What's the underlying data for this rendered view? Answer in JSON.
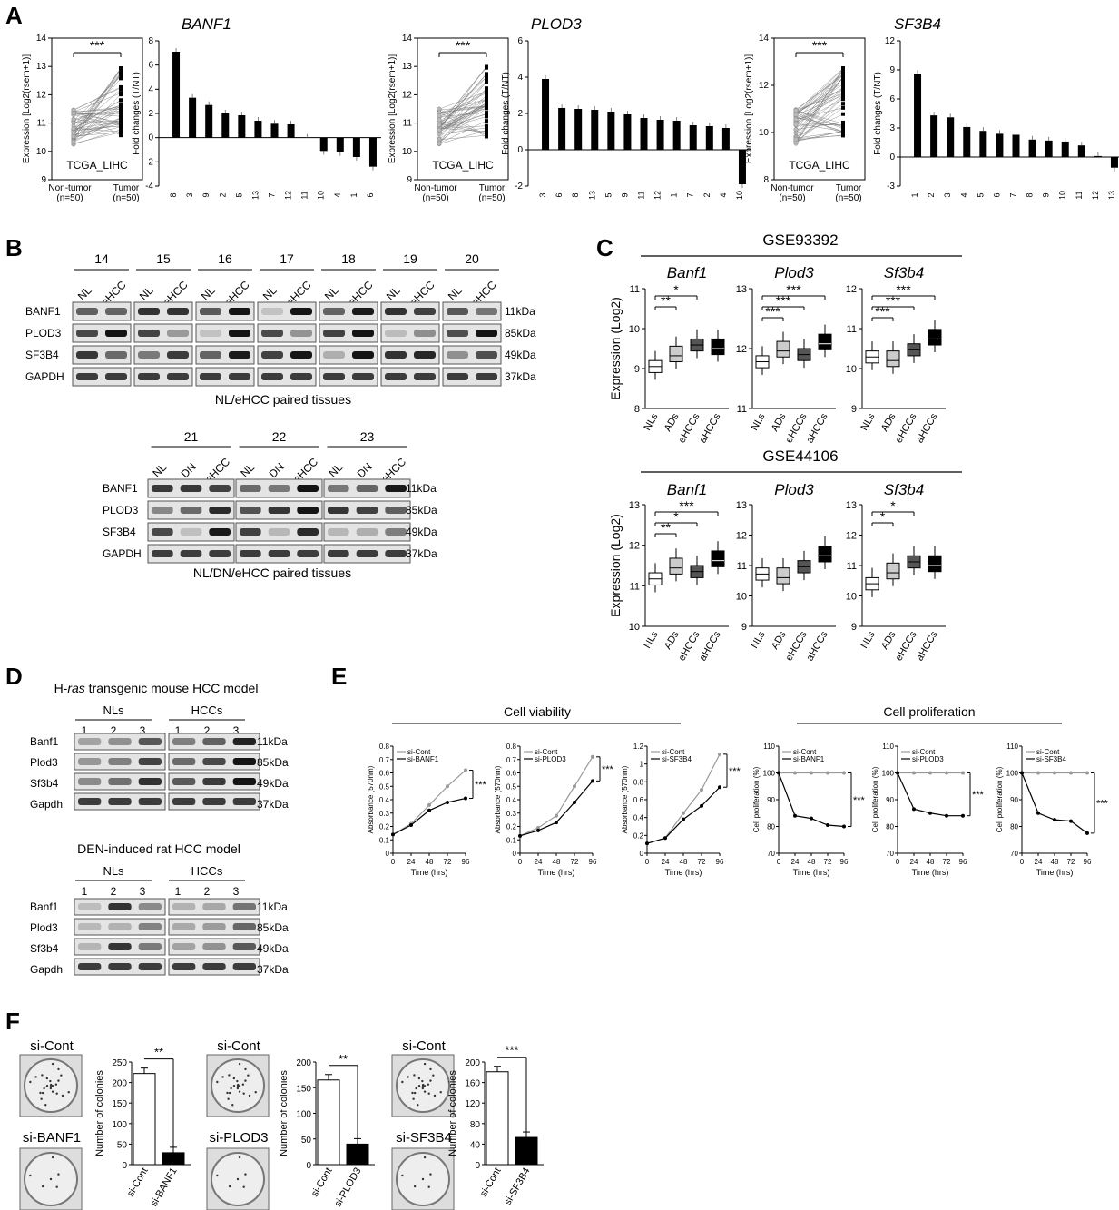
{
  "panels": {
    "A": "A",
    "B": "B",
    "C": "C",
    "D": "D",
    "E": "E",
    "F": "F"
  },
  "panelA": {
    "genes": [
      {
        "name": "BANF1",
        "paired_ylabel": "Expression [Log2(rsem+1)]",
        "paired_yticks": [
          "9",
          "10",
          "11",
          "12",
          "13",
          "14"
        ],
        "paired_ylim": [
          9,
          14
        ],
        "stars": "***",
        "inset": "TCGA_LIHC",
        "xlabels": [
          "Non-tumor\n(n=50)",
          "Tumor\n(n=50)"
        ],
        "fc_ylabel": "Fold changes (T/NT)",
        "fc_ylim": [
          -4,
          8
        ],
        "fc_yticks": [
          "-4",
          "-2",
          "0",
          "2",
          "4",
          "6",
          "8"
        ],
        "fc_categories": [
          "8",
          "3",
          "9",
          "2",
          "5",
          "13",
          "7",
          "12",
          "11",
          "10",
          "4",
          "1",
          "6"
        ],
        "fc_values": [
          7.1,
          3.3,
          2.7,
          2.0,
          1.85,
          1.4,
          1.15,
          1.1,
          0,
          -1.1,
          -1.2,
          -1.6,
          -2.4
        ]
      },
      {
        "name": "PLOD3",
        "paired_ylabel": "Expression [Log2(rsem+1)]",
        "paired_yticks": [
          "9",
          "10",
          "11",
          "12",
          "13",
          "14"
        ],
        "paired_ylim": [
          9,
          14
        ],
        "stars": "***",
        "inset": "TCGA_LIHC",
        "xlabels": [
          "Non-tumor\n(n=50)",
          "Tumor\n(n=50)"
        ],
        "fc_ylabel": "Fold changes (T/NT)",
        "fc_ylim": [
          -2,
          6
        ],
        "fc_yticks": [
          "-2",
          "0",
          "2",
          "4",
          "6"
        ],
        "fc_categories": [
          "3",
          "6",
          "8",
          "13",
          "5",
          "9",
          "11",
          "12",
          "1",
          "7",
          "2",
          "4",
          "10"
        ],
        "fc_values": [
          3.9,
          2.3,
          2.25,
          2.2,
          2.1,
          1.95,
          1.75,
          1.65,
          1.6,
          1.35,
          1.3,
          1.2,
          -1.9
        ]
      },
      {
        "name": "SF3B4",
        "paired_ylabel": "Expression [Log2(rsem+1)]",
        "paired_yticks": [
          "8",
          "10",
          "12",
          "14"
        ],
        "paired_ylim": [
          8,
          14
        ],
        "stars": "***",
        "inset": "TCGA_LIHC",
        "xlabels": [
          "Non-tumor\n(n=50)",
          "Tumor\n(n=50)"
        ],
        "fc_ylabel": "Fold changes (T/NT)",
        "fc_ylim": [
          -3,
          12
        ],
        "fc_yticks": [
          "-3",
          "0",
          "3",
          "6",
          "9",
          "12"
        ],
        "fc_categories": [
          "1",
          "2",
          "3",
          "4",
          "5",
          "6",
          "7",
          "8",
          "9",
          "10",
          "11",
          "12",
          "13"
        ],
        "fc_values": [
          8.6,
          4.3,
          4.1,
          3.1,
          2.7,
          2.4,
          2.3,
          1.8,
          1.7,
          1.6,
          1.2,
          0.1,
          -1.1
        ]
      }
    ]
  },
  "panelB": {
    "top": {
      "samples": [
        "14",
        "15",
        "16",
        "17",
        "18",
        "19",
        "20"
      ],
      "lanes": [
        "NL",
        "eHCC"
      ],
      "proteins": [
        "BANF1",
        "PLOD3",
        "SF3B4",
        "GAPDH"
      ],
      "sizes": [
        "11kDa",
        "85kDa",
        "49kDa",
        "37kDa"
      ],
      "caption": "NL/eHCC paired tissues"
    },
    "bottom": {
      "samples": [
        "21",
        "22",
        "23"
      ],
      "lanes": [
        "NL",
        "DN",
        "eHCC"
      ],
      "proteins": [
        "BANF1",
        "PLOD3",
        "SF3B4",
        "GAPDH"
      ],
      "sizes": [
        "11kDa",
        "85kDa",
        "49kDa",
        "37kDa"
      ],
      "caption": "NL/DN/eHCC paired tissues"
    }
  },
  "panelC": {
    "ylabel": "Expression (Log2)",
    "groups": [
      "NLs",
      "ADs",
      "eHCCs",
      "aHCCs"
    ],
    "datasets": [
      {
        "title": "GSE93392",
        "genes": [
          {
            "name": "Banf1",
            "yticks": [
              "8",
              "9",
              "10",
              "11"
            ],
            "ylim": [
              8,
              11
            ],
            "stars": [
              "**",
              "*"
            ]
          },
          {
            "name": "Plod3",
            "yticks": [
              "11",
              "12",
              "13"
            ],
            "ylim": [
              11,
              13
            ],
            "stars": [
              "***",
              "***",
              "***"
            ]
          },
          {
            "name": "Sf3b4",
            "yticks": [
              "9",
              "10",
              "11",
              "12"
            ],
            "ylim": [
              9,
              12
            ],
            "stars": [
              "***",
              "***",
              "***"
            ]
          }
        ]
      },
      {
        "title": "GSE44106",
        "genes": [
          {
            "name": "Banf1",
            "yticks": [
              "10",
              "11",
              "12",
              "13"
            ],
            "ylim": [
              10,
              13
            ],
            "stars": [
              "**",
              "*",
              "***"
            ]
          },
          {
            "name": "Plod3",
            "yticks": [
              "9",
              "10",
              "11",
              "12",
              "13"
            ],
            "ylim": [
              9,
              13
            ],
            "stars": []
          },
          {
            "name": "Sf3b4",
            "yticks": [
              "9",
              "10",
              "11",
              "12",
              "13"
            ],
            "ylim": [
              9,
              13
            ],
            "stars": [
              "*",
              "*"
            ]
          }
        ]
      }
    ]
  },
  "panelD": {
    "mouse": {
      "title_pre": "H-",
      "title_it": "ras",
      "title_post": " transgenic mouse HCC model",
      "groups": [
        "NLs",
        "HCCs"
      ],
      "lanes": [
        "1",
        "2",
        "3"
      ],
      "proteins": [
        "Banf1",
        "Plod3",
        "Sf3b4",
        "Gapdh"
      ],
      "sizes": [
        "11kDa",
        "85kDa",
        "49kDa",
        "37kDa"
      ]
    },
    "rat": {
      "title": "DEN-induced rat HCC model",
      "groups": [
        "NLs",
        "HCCs"
      ],
      "lanes": [
        "1",
        "2",
        "3"
      ],
      "proteins": [
        "Banf1",
        "Plod3",
        "Sf3b4",
        "Gapdh"
      ],
      "sizes": [
        "11kDa",
        "85kDa",
        "49kDa",
        "37kDa"
      ]
    }
  },
  "panelE": {
    "viability_title": "Cell viability",
    "proliferation_title": "Cell proliferation",
    "xlabel": "Time (hrs)",
    "x": [
      0,
      24,
      48,
      72,
      96
    ],
    "viability": {
      "ylabel": "Absorbance (570nm)",
      "ylim": [
        0,
        0.8
      ],
      "yticks": [
        "0",
        "0.1",
        "0.2",
        "0.3",
        "0.4",
        "0.5",
        "0.6",
        "0.7",
        "0.8"
      ],
      "charts": [
        {
          "ctrl": "si-Cont",
          "kd": "si-BANF1",
          "ctrl_vals": [
            0.14,
            0.22,
            0.36,
            0.5,
            0.62
          ],
          "kd_vals": [
            0.14,
            0.21,
            0.32,
            0.38,
            0.41
          ],
          "stars": "***"
        },
        {
          "ctrl": "si-Cont",
          "kd": "si-PLOD3",
          "ctrl_vals": [
            0.13,
            0.19,
            0.28,
            0.5,
            0.72
          ],
          "kd_vals": [
            0.13,
            0.17,
            0.23,
            0.38,
            0.54
          ],
          "stars": "***"
        },
        {
          "ctrl": "si-Cont",
          "kd": "si-SF3B4",
          "ctrl_vals": [
            0.11,
            0.17,
            0.45,
            0.71,
            1.11
          ],
          "kd_vals": [
            0.11,
            0.17,
            0.38,
            0.53,
            0.74
          ],
          "stars": "***",
          "ylim": [
            0,
            1.2
          ],
          "yticks": [
            "0",
            "0.2",
            "0.4",
            "0.6",
            "0.8",
            "1",
            "1.2"
          ]
        }
      ]
    },
    "proliferation": {
      "ylabel": "Cell proliferation (%)",
      "ylim": [
        70,
        110
      ],
      "yticks": [
        "70",
        "80",
        "90",
        "100",
        "110"
      ],
      "charts": [
        {
          "ctrl": "si-Cont",
          "kd": "si-BANF1",
          "ctrl_vals": [
            100,
            100,
            100,
            100,
            100
          ],
          "kd_vals": [
            100,
            84,
            83,
            80.5,
            80
          ],
          "stars": "***"
        },
        {
          "ctrl": "si-Cont",
          "kd": "si-PLOD3",
          "ctrl_vals": [
            100,
            100,
            100,
            100,
            100
          ],
          "kd_vals": [
            100,
            86.5,
            85,
            84,
            84
          ],
          "stars": "***"
        },
        {
          "ctrl": "si-Cont",
          "kd": "si-SF3B4",
          "ctrl_vals": [
            100,
            100,
            100,
            100,
            100
          ],
          "kd_vals": [
            100,
            85,
            82.5,
            82,
            77.5
          ],
          "stars": "***"
        }
      ]
    }
  },
  "panelF": {
    "ylabel": "Number of colonies",
    "charts": [
      {
        "ctrl": "si-Cont",
        "kd": "si-BANF1",
        "ylim": [
          0,
          250
        ],
        "yticks": [
          "0",
          "50",
          "100",
          "150",
          "200",
          "250"
        ],
        "values": [
          222,
          29
        ],
        "stars": "**"
      },
      {
        "ctrl": "si-Cont",
        "kd": "si-PLOD3",
        "ylim": [
          0,
          200
        ],
        "yticks": [
          "0",
          "50",
          "100",
          "150",
          "200"
        ],
        "values": [
          165,
          40
        ],
        "stars": "**"
      },
      {
        "ctrl": "si-Cont",
        "kd": "si-SF3B4",
        "ylim": [
          0,
          200
        ],
        "yticks": [
          "0",
          "40",
          "80",
          "120",
          "160",
          "200"
        ],
        "values": [
          181,
          53
        ],
        "stars": "***"
      }
    ]
  }
}
